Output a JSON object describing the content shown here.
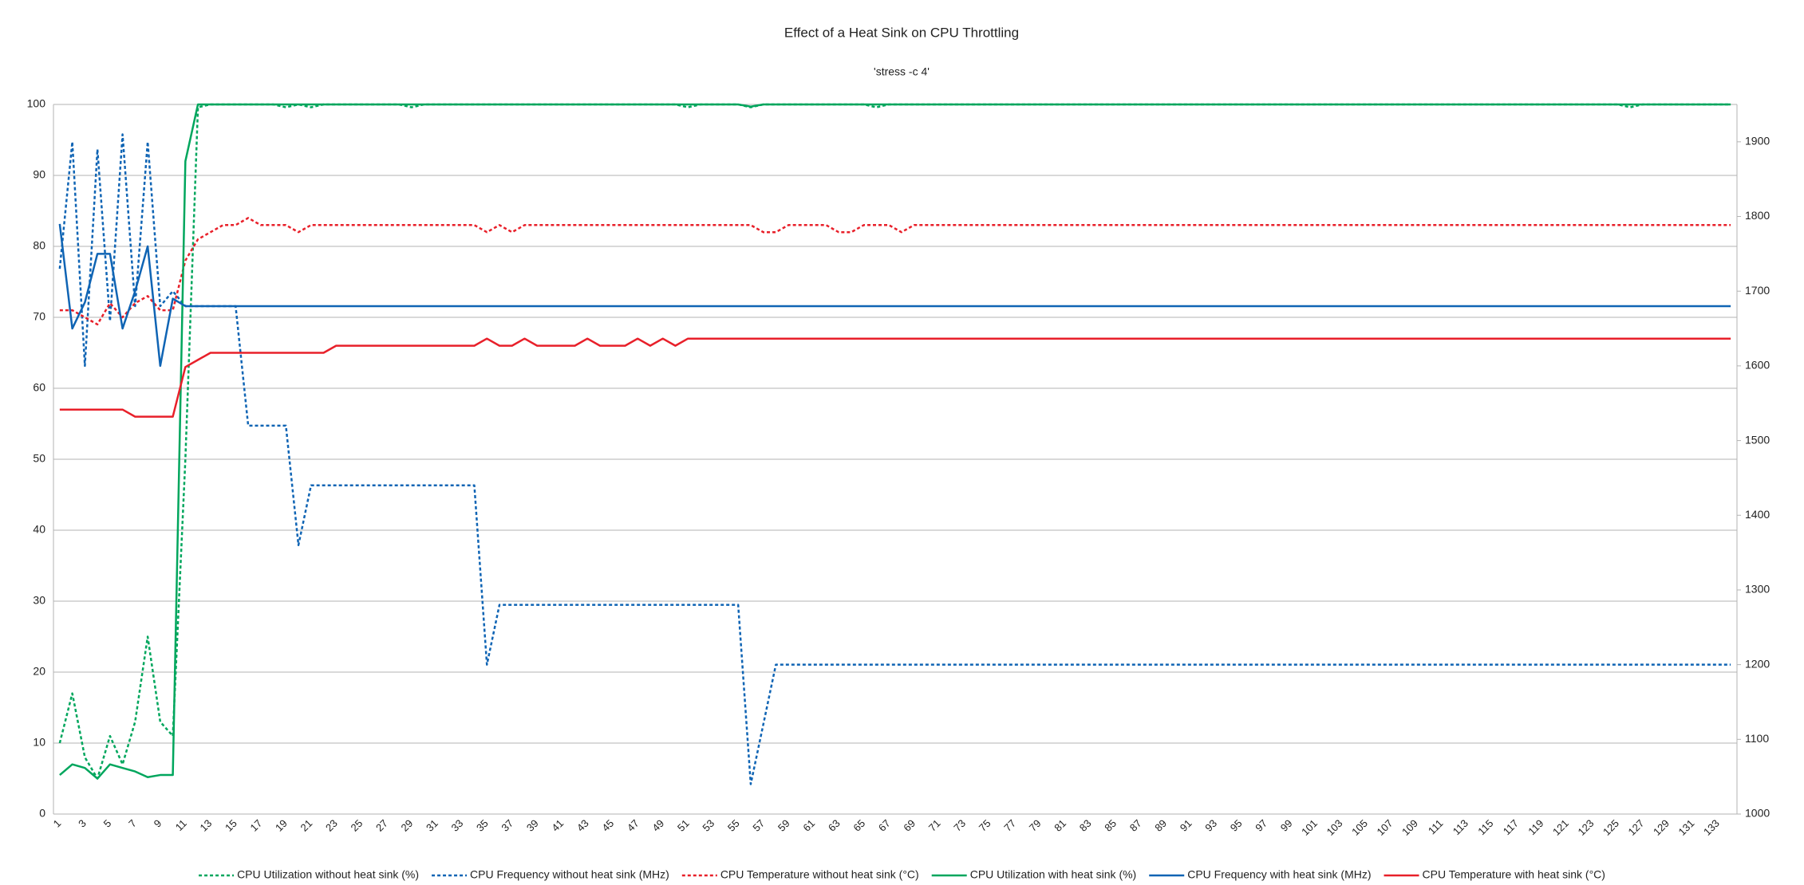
{
  "chart_data": {
    "type": "line",
    "title": "Effect of a Heat Sink on CPU Throttling",
    "subtitle": "'stress -c 4'",
    "categories": [
      1,
      null,
      3,
      null,
      5,
      null,
      7,
      null,
      9,
      null,
      11,
      null,
      13,
      null,
      15,
      null,
      17,
      null,
      19,
      null,
      21,
      null,
      23,
      null,
      25,
      null,
      27,
      null,
      29,
      null,
      31,
      null,
      33,
      null,
      35,
      null,
      37,
      null,
      39,
      null,
      41,
      null,
      43,
      null,
      45,
      null,
      47,
      null,
      49,
      null,
      51,
      null,
      53,
      null,
      55,
      null,
      57,
      null,
      59,
      null,
      61,
      null,
      63,
      null,
      65,
      null,
      67,
      null,
      69,
      null,
      71,
      null,
      73,
      null,
      75,
      null,
      77,
      null,
      79,
      null,
      81,
      null,
      83,
      null,
      85,
      null,
      87,
      null,
      89,
      null,
      91,
      null,
      93,
      null,
      95,
      null,
      97,
      null,
      99,
      null,
      101,
      null,
      103,
      null,
      105,
      null,
      107,
      null,
      109,
      null,
      111,
      null,
      113,
      null,
      115,
      null,
      117,
      null,
      119,
      null,
      121,
      null,
      123,
      null,
      125,
      null,
      127,
      null,
      129,
      null,
      131,
      null,
      133,
      null
    ],
    "ylim": [
      0,
      100
    ],
    "yticks": [
      0,
      10,
      20,
      30,
      40,
      50,
      60,
      70,
      80,
      90,
      100
    ],
    "y2lim": [
      1000,
      1950
    ],
    "y2ticks": [
      1000,
      1100,
      1200,
      1300,
      1400,
      1500,
      1600,
      1700,
      1800,
      1900
    ],
    "grid": true,
    "legend": "bottom",
    "series": [
      {
        "name": "CPU Utilization without heat sink (%)",
        "color": "#00a65d",
        "dash": "dotted",
        "values": [
          10,
          17,
          8,
          5,
          11,
          7,
          13,
          25,
          13,
          11,
          50,
          99.6,
          100,
          100,
          100,
          100,
          100,
          100,
          99.6,
          100,
          99.6,
          100,
          100,
          100,
          100,
          100,
          100,
          100,
          99.6,
          100,
          100,
          100,
          100,
          100,
          100,
          100,
          100,
          100,
          100,
          100,
          100,
          100,
          100,
          100,
          100,
          100,
          100,
          100,
          100,
          100,
          99.6,
          100,
          100,
          100,
          100,
          99.6,
          100,
          100,
          100,
          100,
          100,
          100,
          100,
          100,
          100,
          99.6,
          100,
          100,
          100,
          100,
          100,
          100,
          100,
          100,
          100,
          100,
          100,
          100,
          100,
          100,
          100,
          100,
          100,
          100,
          100,
          100,
          100,
          100,
          100,
          100,
          100,
          100,
          100,
          100,
          100,
          100,
          100,
          100,
          100,
          100,
          100,
          100,
          100,
          100,
          100,
          100,
          100,
          100,
          100,
          100,
          100,
          100,
          100,
          100,
          100,
          100,
          100,
          100,
          100,
          100,
          100,
          100,
          100,
          100,
          100,
          99.6,
          100,
          100,
          100,
          100,
          100,
          100,
          100,
          100
        ]
      },
      {
        "name": "CPU Frequency without heat sink (MHz)",
        "color": "#0f64b4",
        "dash": "dotted",
        "axis": "y2",
        "values": [
          1730,
          1900,
          1600,
          1890,
          1660,
          1910,
          1680,
          1900,
          1680,
          1700,
          1680,
          1680,
          1680,
          1680,
          1680,
          1520,
          1520,
          1520,
          1520,
          1360,
          1440,
          1440,
          1440,
          1440,
          1440,
          1440,
          1440,
          1440,
          1440,
          1440,
          1440,
          1440,
          1440,
          1440,
          1200,
          1280,
          1280,
          1280,
          1280,
          1280,
          1280,
          1280,
          1280,
          1280,
          1280,
          1280,
          1280,
          1280,
          1280,
          1280,
          1280,
          1280,
          1280,
          1280,
          1280,
          1040,
          1120,
          1200,
          1200,
          1200,
          1200,
          1200,
          1200,
          1200,
          1200,
          1200,
          1200,
          1200,
          1200,
          1200,
          1200,
          1200,
          1200,
          1200,
          1200,
          1200,
          1200,
          1200,
          1200,
          1200,
          1200,
          1200,
          1200,
          1200,
          1200,
          1200,
          1200,
          1200,
          1200,
          1200,
          1200,
          1200,
          1200,
          1200,
          1200,
          1200,
          1200,
          1200,
          1200,
          1200,
          1200,
          1200,
          1200,
          1200,
          1200,
          1200,
          1200,
          1200,
          1200,
          1200,
          1200,
          1200,
          1200,
          1200,
          1200,
          1200,
          1200,
          1200,
          1200,
          1200,
          1200,
          1200,
          1200,
          1200,
          1200,
          1200,
          1200,
          1200,
          1200,
          1200,
          1200,
          1200,
          1200,
          1200
        ]
      },
      {
        "name": "CPU Temperature without heat sink (°C)",
        "color": "#e8202a",
        "dash": "dotted",
        "values": [
          71,
          71,
          70,
          69,
          72,
          70,
          72,
          73,
          71,
          71,
          78,
          81,
          82,
          83,
          83,
          84,
          83,
          83,
          83,
          82,
          83,
          83,
          83,
          83,
          83,
          83,
          83,
          83,
          83,
          83,
          83,
          83,
          83,
          83,
          82,
          83,
          82,
          83,
          83,
          83,
          83,
          83,
          83,
          83,
          83,
          83,
          83,
          83,
          83,
          83,
          83,
          83,
          83,
          83,
          83,
          83,
          82,
          82,
          83,
          83,
          83,
          83,
          82,
          82,
          83,
          83,
          83,
          82,
          83,
          83,
          83,
          83,
          83,
          83,
          83,
          83,
          83,
          83,
          83,
          83,
          83,
          83,
          83,
          83,
          83,
          83,
          83,
          83,
          83,
          83,
          83,
          83,
          83,
          83,
          83,
          83,
          83,
          83,
          83,
          83,
          83,
          83,
          83,
          83,
          83,
          83,
          83,
          83,
          83,
          83,
          83,
          83,
          83,
          83,
          83,
          83,
          83,
          83,
          83,
          83,
          83,
          83,
          83,
          83,
          83,
          83,
          83,
          83,
          83,
          83,
          83,
          83,
          83,
          83
        ]
      },
      {
        "name": "CPU Utilization with heat sink (%)",
        "color": "#00a65d",
        "dash": "solid",
        "values": [
          5.5,
          7,
          6.5,
          5,
          7,
          6.5,
          6,
          5.2,
          5.5,
          5.5,
          92,
          100,
          100,
          100,
          100,
          100,
          100,
          100,
          100,
          100,
          100,
          100,
          100,
          100,
          100,
          100,
          100,
          100,
          100,
          100,
          100,
          100,
          100,
          100,
          100,
          100,
          100,
          100,
          100,
          100,
          100,
          100,
          100,
          100,
          100,
          100,
          100,
          100,
          100,
          100,
          100,
          100,
          100,
          100,
          100,
          99.7,
          100,
          100,
          100,
          100,
          100,
          100,
          100,
          100,
          100,
          100,
          100,
          100,
          100,
          100,
          100,
          100,
          100,
          100,
          100,
          100,
          100,
          100,
          100,
          100,
          100,
          100,
          100,
          100,
          100,
          100,
          100,
          100,
          100,
          100,
          100,
          100,
          100,
          100,
          100,
          100,
          100,
          100,
          100,
          100,
          100,
          100,
          100,
          100,
          100,
          100,
          100,
          100,
          100,
          100,
          100,
          100,
          100,
          100,
          100,
          100,
          100,
          100,
          100,
          100,
          100,
          100,
          100,
          100,
          100,
          100,
          100,
          100,
          100,
          100,
          100,
          100,
          100,
          100
        ]
      },
      {
        "name": "CPU Frequency with heat sink (MHz)",
        "color": "#0f64b4",
        "dash": "solid",
        "axis": "y2",
        "values": [
          1790,
          1650,
          1685,
          1750,
          1750,
          1650,
          1700,
          1760,
          1600,
          1690,
          1680,
          1680,
          1680,
          1680,
          1680,
          1680,
          1680,
          1680,
          1680,
          1680,
          1680,
          1680,
          1680,
          1680,
          1680,
          1680,
          1680,
          1680,
          1680,
          1680,
          1680,
          1680,
          1680,
          1680,
          1680,
          1680,
          1680,
          1680,
          1680,
          1680,
          1680,
          1680,
          1680,
          1680,
          1680,
          1680,
          1680,
          1680,
          1680,
          1680,
          1680,
          1680,
          1680,
          1680,
          1680,
          1680,
          1680,
          1680,
          1680,
          1680,
          1680,
          1680,
          1680,
          1680,
          1680,
          1680,
          1680,
          1680,
          1680,
          1680,
          1680,
          1680,
          1680,
          1680,
          1680,
          1680,
          1680,
          1680,
          1680,
          1680,
          1680,
          1680,
          1680,
          1680,
          1680,
          1680,
          1680,
          1680,
          1680,
          1680,
          1680,
          1680,
          1680,
          1680,
          1680,
          1680,
          1680,
          1680,
          1680,
          1680,
          1680,
          1680,
          1680,
          1680,
          1680,
          1680,
          1680,
          1680,
          1680,
          1680,
          1680,
          1680,
          1680,
          1680,
          1680,
          1680,
          1680,
          1680,
          1680,
          1680,
          1680,
          1680,
          1680,
          1680,
          1680,
          1680,
          1680,
          1680,
          1680,
          1680,
          1680,
          1680,
          1680,
          1680
        ]
      },
      {
        "name": "CPU Temperature with heat sink (°C)",
        "color": "#e8202a",
        "dash": "solid",
        "values": [
          57,
          57,
          57,
          57,
          57,
          57,
          56,
          56,
          56,
          56,
          63,
          64,
          65,
          65,
          65,
          65,
          65,
          65,
          65,
          65,
          65,
          65,
          66,
          66,
          66,
          66,
          66,
          66,
          66,
          66,
          66,
          66,
          66,
          66,
          67,
          66,
          66,
          67,
          66,
          66,
          66,
          66,
          67,
          66,
          66,
          66,
          67,
          66,
          67,
          66,
          67,
          67,
          67,
          67,
          67,
          67,
          67,
          67,
          67,
          67,
          67,
          67,
          67,
          67,
          67,
          67,
          67,
          67,
          67,
          67,
          67,
          67,
          67,
          67,
          67,
          67,
          67,
          67,
          67,
          67,
          67,
          67,
          67,
          67,
          67,
          67,
          67,
          67,
          67,
          67,
          67,
          67,
          67,
          67,
          67,
          67,
          67,
          67,
          67,
          67,
          67,
          67,
          67,
          67,
          67,
          67,
          67,
          67,
          67,
          67,
          67,
          67,
          67,
          67,
          67,
          67,
          67,
          67,
          67,
          67,
          67,
          67,
          67,
          67,
          67,
          67,
          67,
          67,
          67,
          67,
          67,
          67,
          67,
          67
        ]
      }
    ]
  }
}
